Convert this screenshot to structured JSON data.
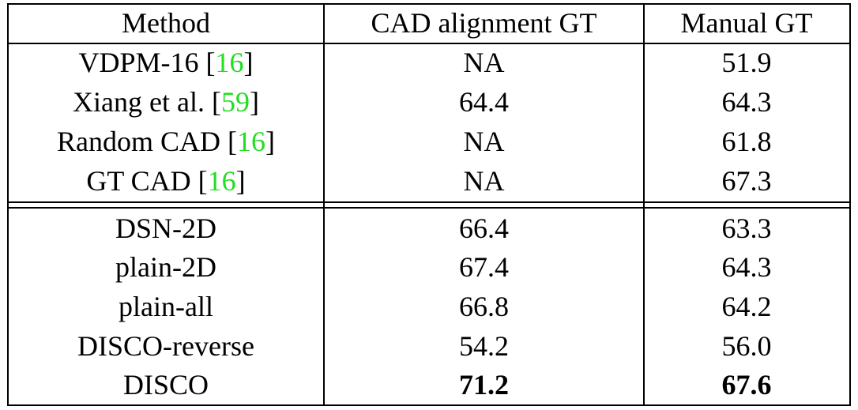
{
  "table": {
    "header": [
      "Method",
      "CAD alignment GT",
      "Manual GT"
    ],
    "groups": [
      [
        {
          "method": [
            "VDPM-16 [",
            "16",
            "]"
          ],
          "cad": "NA",
          "manual": "51.9"
        },
        {
          "method": [
            "Xiang et al. [",
            "59",
            "]"
          ],
          "cad": "64.4",
          "manual": "64.3"
        },
        {
          "method": [
            "Random CAD [",
            "16",
            "]"
          ],
          "cad": "NA",
          "manual": "61.8"
        },
        {
          "method": [
            "GT CAD [",
            "16",
            "]"
          ],
          "cad": "NA",
          "manual": "67.3"
        }
      ],
      [
        {
          "method": [
            "DSN-2D"
          ],
          "cad": "66.4",
          "manual": "63.3"
        },
        {
          "method": [
            "plain-2D"
          ],
          "cad": "67.4",
          "manual": "64.3"
        },
        {
          "method": [
            "plain-all"
          ],
          "cad": "66.8",
          "manual": "64.2"
        },
        {
          "method": [
            "DISCO-reverse"
          ],
          "cad": "54.2",
          "manual": "56.0"
        },
        {
          "method": [
            "DISCO"
          ],
          "cad": "71.2",
          "manual": "67.6",
          "bold": true
        }
      ]
    ],
    "ref_color": "#22dd22"
  }
}
